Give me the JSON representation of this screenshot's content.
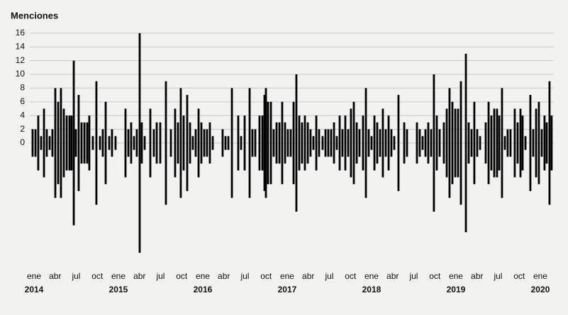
{
  "chart_data": {
    "type": "bar",
    "title": "Menciones",
    "color": "#000000",
    "symmetric": true,
    "grid": true,
    "x": [
      2013.983,
      2014.017,
      2014.05,
      2014.084,
      2014.118,
      2014.151,
      2014.185,
      2014.218,
      2014.252,
      2014.286,
      2014.319,
      2014.353,
      2014.387,
      2014.42,
      2014.445,
      2014.471,
      2014.496,
      2014.529,
      2014.563,
      2014.597,
      2014.63,
      2014.655,
      2014.697,
      2014.739,
      2014.782,
      2014.815,
      2014.849,
      2014.891,
      2014.924,
      2014.966,
      2015.084,
      2015.118,
      2015.151,
      2015.185,
      2015.218,
      2015.252,
      2015.277,
      2015.311,
      2015.378,
      2015.42,
      2015.454,
      2015.496,
      2015.563,
      2015.622,
      2015.672,
      2015.706,
      2015.739,
      2015.773,
      2015.815,
      2015.849,
      2015.882,
      2015.916,
      2015.95,
      2015.983,
      2016.017,
      2016.05,
      2016.084,
      2016.118,
      2016.235,
      2016.269,
      2016.303,
      2016.345,
      2016.42,
      2016.454,
      2016.496,
      2016.555,
      2016.588,
      2016.622,
      2016.672,
      2016.706,
      2016.731,
      2016.748,
      2016.773,
      2016.807,
      2016.84,
      2016.874,
      2016.908,
      2016.941,
      2016.975,
      2017.008,
      2017.042,
      2017.076,
      2017.109,
      2017.143,
      2017.176,
      2017.21,
      2017.244,
      2017.277,
      2017.311,
      2017.345,
      2017.378,
      2017.42,
      2017.454,
      2017.487,
      2017.521,
      2017.555,
      2017.588,
      2017.622,
      2017.655,
      2017.689,
      2017.723,
      2017.756,
      2017.79,
      2017.824,
      2017.857,
      2017.899,
      2017.933,
      2017.966,
      2018.0,
      2018.034,
      2018.067,
      2018.101,
      2018.134,
      2018.168,
      2018.202,
      2018.235,
      2018.269,
      2018.319,
      2018.387,
      2018.42,
      2018.538,
      2018.571,
      2018.605,
      2018.639,
      2018.672,
      2018.706,
      2018.739,
      2018.773,
      2018.807,
      2018.857,
      2018.891,
      2018.924,
      2018.958,
      2018.992,
      2019.025,
      2019.059,
      2019.118,
      2019.151,
      2019.185,
      2019.218,
      2019.252,
      2019.286,
      2019.353,
      2019.387,
      2019.42,
      2019.454,
      2019.487,
      2019.513,
      2019.546,
      2019.58,
      2019.613,
      2019.647,
      2019.697,
      2019.731,
      2019.765,
      2019.79,
      2019.824,
      2019.882,
      2019.916,
      2019.95,
      2019.983,
      2020.017,
      2020.05,
      2020.076,
      2020.109,
      2020.134
    ],
    "values": [
      2,
      2,
      4,
      1,
      5,
      2,
      1,
      2,
      8,
      6,
      8,
      5,
      4,
      4,
      4,
      12,
      2,
      7,
      3,
      3,
      3,
      4,
      1,
      9,
      1,
      2,
      6,
      1,
      2,
      1,
      5,
      2,
      3,
      1,
      2,
      16,
      3,
      1,
      5,
      2,
      3,
      3,
      9,
      2,
      5,
      3,
      8,
      4,
      7,
      3,
      1,
      2,
      5,
      3,
      2,
      2,
      3,
      1,
      2,
      1,
      1,
      8,
      4,
      1,
      4,
      8,
      2,
      2,
      4,
      4,
      7,
      8,
      6,
      6,
      2,
      3,
      3,
      6,
      3,
      2,
      2,
      6,
      10,
      4,
      3,
      4,
      3,
      2,
      1,
      4,
      2,
      1,
      2,
      2,
      2,
      3,
      1,
      4,
      2,
      4,
      2,
      5,
      6,
      3,
      2,
      4,
      8,
      2,
      1,
      4,
      3,
      2,
      5,
      2,
      4,
      2,
      1,
      7,
      3,
      2,
      3,
      2,
      1,
      2,
      3,
      2,
      10,
      4,
      2,
      3,
      5,
      8,
      6,
      5,
      5,
      9,
      13,
      3,
      2,
      6,
      2,
      1,
      3,
      6,
      4,
      5,
      5,
      4,
      8,
      1,
      2,
      2,
      5,
      3,
      5,
      4,
      1,
      7,
      2,
      5,
      6,
      2,
      4,
      3,
      9,
      4
    ],
    "xlim": [
      2013.874,
      2020.16
    ],
    "ylim": [
      -16.5,
      16.5
    ],
    "yticks": [
      0,
      2,
      4,
      6,
      8,
      10,
      12,
      14,
      16
    ],
    "xticks": [
      {
        "value": 2014,
        "label": "ene"
      },
      {
        "value": 2014.25,
        "label": "abr"
      },
      {
        "value": 2014.5,
        "label": "jul"
      },
      {
        "value": 2014.75,
        "label": "oct"
      },
      {
        "value": 2015,
        "label": "ene"
      },
      {
        "value": 2015.25,
        "label": "abr"
      },
      {
        "value": 2015.5,
        "label": "jul"
      },
      {
        "value": 2015.75,
        "label": "oct"
      },
      {
        "value": 2016,
        "label": "ene"
      },
      {
        "value": 2016.25,
        "label": "abr"
      },
      {
        "value": 2016.5,
        "label": "jul"
      },
      {
        "value": 2016.75,
        "label": "oct"
      },
      {
        "value": 2017,
        "label": "ene"
      },
      {
        "value": 2017.25,
        "label": "abr"
      },
      {
        "value": 2017.5,
        "label": "jul"
      },
      {
        "value": 2017.75,
        "label": "oct"
      },
      {
        "value": 2018,
        "label": "ene"
      },
      {
        "value": 2018.25,
        "label": "abr"
      },
      {
        "value": 2018.5,
        "label": "jul"
      },
      {
        "value": 2018.75,
        "label": "oct"
      },
      {
        "value": 2019,
        "label": "ene"
      },
      {
        "value": 2019.25,
        "label": "abr"
      },
      {
        "value": 2019.5,
        "label": "jul"
      },
      {
        "value": 2019.75,
        "label": "oct"
      },
      {
        "value": 2020,
        "label": "ene"
      }
    ],
    "year_ticks": [
      2014,
      2015,
      2016,
      2017,
      2018,
      2019,
      2020
    ]
  }
}
